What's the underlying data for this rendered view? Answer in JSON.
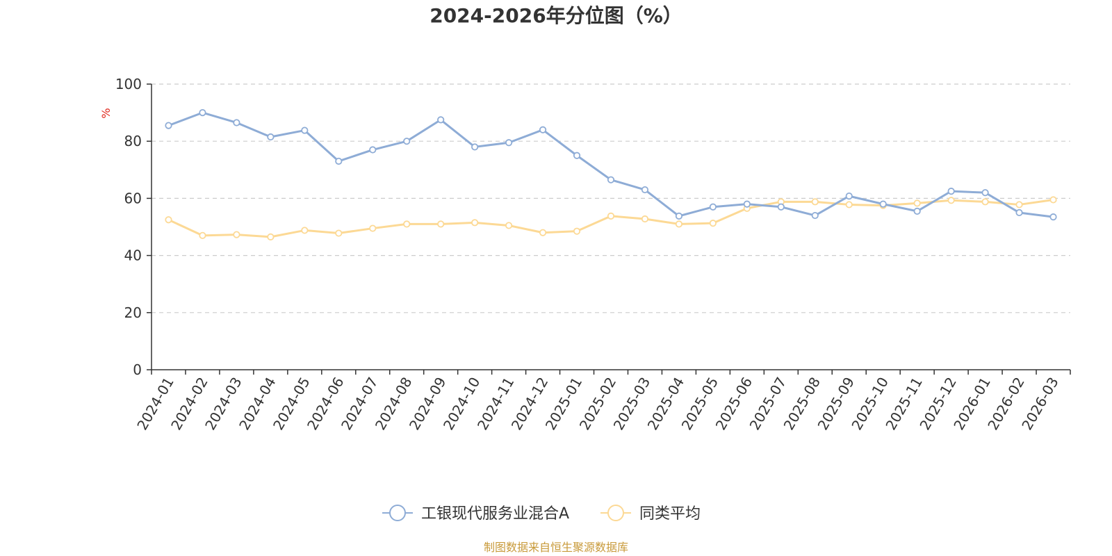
{
  "chart_data": {
    "type": "line",
    "title": "2024-2026年分位图（%）",
    "ylabel": "%",
    "xlabel": "",
    "ylim": [
      0,
      100
    ],
    "yticks": [
      0,
      20,
      40,
      60,
      80,
      100
    ],
    "grid": true,
    "legend_position": "bottom",
    "categories": [
      "2024-01",
      "2024-02",
      "2024-03",
      "2024-04",
      "2024-05",
      "2024-06",
      "2024-07",
      "2024-08",
      "2024-09",
      "2024-10",
      "2024-11",
      "2024-12",
      "2025-01",
      "2025-02",
      "2025-03",
      "2025-04",
      "2025-05",
      "2025-06",
      "2025-07",
      "2025-08",
      "2025-09",
      "2025-10",
      "2025-11",
      "2025-12",
      "2026-01",
      "2026-02",
      "2026-03"
    ],
    "series": [
      {
        "name": "工银现代服务业混合A",
        "color": "#8eacd6",
        "values": [
          85.5,
          90.0,
          86.5,
          81.5,
          83.8,
          73.0,
          77.0,
          80.0,
          87.5,
          78.0,
          79.5,
          84.0,
          75.0,
          66.5,
          63.0,
          53.8,
          57.0,
          58.0,
          57.0,
          54.0,
          60.8,
          58.0,
          55.5,
          62.5,
          62.0,
          55.0,
          53.5
        ]
      },
      {
        "name": "同类平均",
        "color": "#fcd995",
        "values": [
          52.5,
          47.0,
          47.3,
          46.5,
          48.8,
          47.8,
          49.5,
          51.0,
          51.0,
          51.5,
          50.5,
          48.0,
          48.5,
          53.8,
          52.8,
          51.0,
          51.3,
          56.5,
          58.8,
          58.8,
          57.8,
          57.5,
          58.3,
          59.3,
          58.8,
          57.8,
          59.5
        ]
      }
    ]
  },
  "footer": {
    "source": "制图数据来自恒生聚源数据库",
    "source_color": "#c89a3a"
  },
  "colors": {
    "unit_label": "#e0261b",
    "axis": "#333333",
    "grid": "#cccccc"
  }
}
